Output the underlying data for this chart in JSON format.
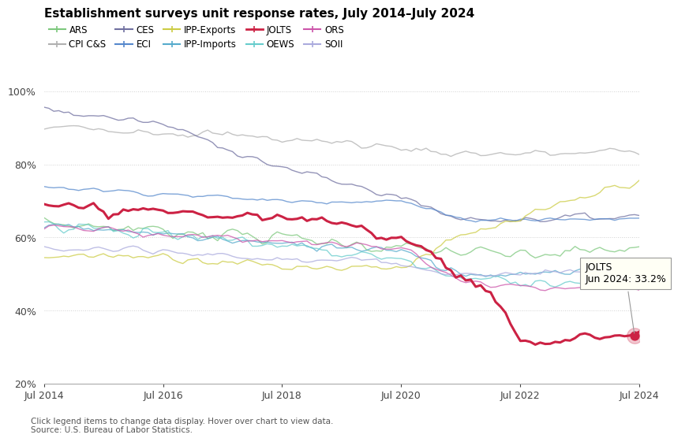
{
  "title": "Establishment surveys unit response rates, July 2014–July 2024",
  "ylim": [
    20,
    103
  ],
  "yticks": [
    20,
    40,
    60,
    80,
    100
  ],
  "ytick_labels": [
    "20%",
    "40%",
    "60%",
    "80%",
    "100%"
  ],
  "xticks": [
    0,
    24,
    48,
    72,
    96,
    120
  ],
  "xtick_labels": [
    "Jul 2014",
    "Jul 2016",
    "Jul 2018",
    "Jul 2020",
    "Jul 2022",
    "Jul 2024"
  ],
  "n_months": 121,
  "series": {
    "ARS": {
      "color": "#7dc87d",
      "linewidth": 1.0,
      "alpha": 0.75,
      "waypoints": [
        [
          0,
          64
        ],
        [
          24,
          62
        ],
        [
          48,
          60
        ],
        [
          72,
          57
        ],
        [
          96,
          55
        ],
        [
          120,
          57
        ]
      ],
      "noise": 1.5
    },
    "CPI C&S": {
      "color": "#b0b0b0",
      "linewidth": 1.0,
      "alpha": 0.75,
      "waypoints": [
        [
          0,
          90
        ],
        [
          12,
          90
        ],
        [
          36,
          88
        ],
        [
          60,
          86
        ],
        [
          84,
          83
        ],
        [
          108,
          83
        ],
        [
          120,
          84
        ]
      ],
      "noise": 1.0
    },
    "CES": {
      "color": "#7070a0",
      "linewidth": 1.0,
      "alpha": 0.75,
      "waypoints": [
        [
          0,
          95
        ],
        [
          24,
          91
        ],
        [
          48,
          79
        ],
        [
          72,
          71
        ],
        [
          84,
          65
        ],
        [
          96,
          65
        ],
        [
          120,
          66
        ]
      ],
      "noise": 0.8
    },
    "ECI": {
      "color": "#5588cc",
      "linewidth": 1.0,
      "alpha": 0.75,
      "waypoints": [
        [
          0,
          74
        ],
        [
          24,
          72
        ],
        [
          48,
          70
        ],
        [
          72,
          70
        ],
        [
          84,
          65
        ],
        [
          96,
          65
        ],
        [
          120,
          65
        ]
      ],
      "noise": 0.5
    },
    "IPP-Exports": {
      "color": "#cccc44",
      "linewidth": 1.0,
      "alpha": 0.75,
      "waypoints": [
        [
          0,
          55
        ],
        [
          24,
          55
        ],
        [
          48,
          52
        ],
        [
          72,
          52
        ],
        [
          84,
          60
        ],
        [
          96,
          65
        ],
        [
          120,
          76
        ]
      ],
      "noise": 1.0
    },
    "IPP-Imports": {
      "color": "#55aacc",
      "linewidth": 1.0,
      "alpha": 0.75,
      "waypoints": [
        [
          0,
          63
        ],
        [
          24,
          61
        ],
        [
          48,
          58
        ],
        [
          72,
          57
        ],
        [
          84,
          50
        ],
        [
          96,
          50
        ],
        [
          120,
          50
        ]
      ],
      "noise": 1.0
    },
    "JOLTS": {
      "color": "#cc2244",
      "linewidth": 2.2,
      "alpha": 1.0,
      "waypoints": [
        [
          0,
          68
        ],
        [
          24,
          67
        ],
        [
          48,
          65
        ],
        [
          60,
          64
        ],
        [
          72,
          60
        ],
        [
          78,
          56
        ],
        [
          84,
          50
        ],
        [
          90,
          44
        ],
        [
          96,
          32
        ],
        [
          102,
          31
        ],
        [
          108,
          33
        ],
        [
          114,
          33
        ],
        [
          119,
          33.2
        ]
      ],
      "noise": 1.2
    },
    "OEWS": {
      "color": "#66cccc",
      "linewidth": 1.0,
      "alpha": 0.75,
      "waypoints": [
        [
          0,
          64
        ],
        [
          24,
          61
        ],
        [
          48,
          58
        ],
        [
          72,
          54
        ],
        [
          84,
          49
        ],
        [
          96,
          48
        ],
        [
          120,
          48
        ]
      ],
      "noise": 1.5
    },
    "ORS": {
      "color": "#cc55aa",
      "linewidth": 1.0,
      "alpha": 0.75,
      "waypoints": [
        [
          0,
          63
        ],
        [
          24,
          61
        ],
        [
          48,
          59
        ],
        [
          72,
          57
        ],
        [
          84,
          48
        ],
        [
          96,
          46
        ],
        [
          120,
          46
        ]
      ],
      "noise": 0.8
    },
    "SOII": {
      "color": "#aaaadd",
      "linewidth": 1.0,
      "alpha": 0.75,
      "waypoints": [
        [
          0,
          57
        ],
        [
          24,
          56
        ],
        [
          48,
          54
        ],
        [
          72,
          53
        ],
        [
          84,
          50
        ],
        [
          96,
          50
        ],
        [
          120,
          52
        ]
      ],
      "noise": 0.8
    }
  },
  "legend_order": [
    "ARS",
    "CPI C&S",
    "CES",
    "ECI",
    "IPP-Exports",
    "IPP-Imports",
    "JOLTS",
    "OEWS",
    "ORS",
    "SOII"
  ],
  "tooltip_text": "JOLTS\nJun 2024: 33.2%",
  "tooltip_x": 119,
  "tooltip_y": 33.2,
  "marker_x": 119,
  "marker_y": 33.2,
  "footer_text": "Click legend items to change data display. Hover over chart to view data.\nSource: U.S. Bureau of Labor Statistics.",
  "background_color": "#ffffff",
  "grid_color": "#cccccc",
  "grid_style": ":"
}
